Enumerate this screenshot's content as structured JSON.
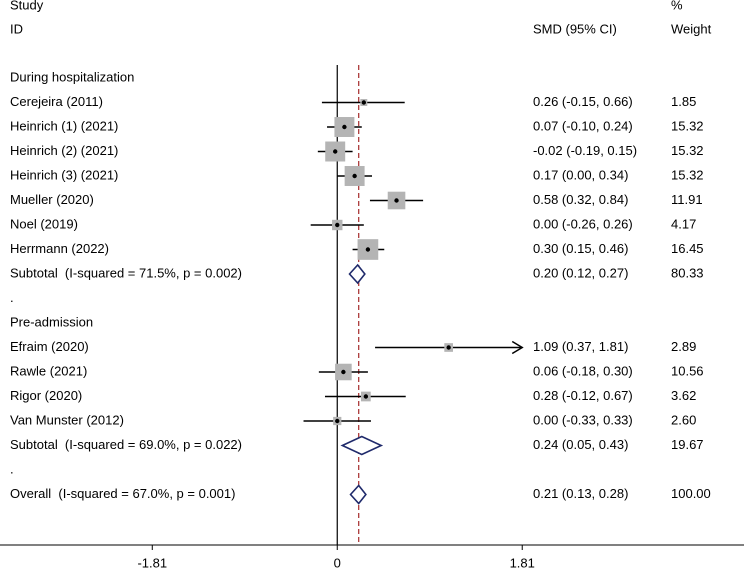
{
  "chart_data": {
    "type": "forest",
    "headers": {
      "study_top": "Study",
      "study": "ID",
      "effect": "SMD (95% CI)",
      "weight_top": "%",
      "weight": "Weight"
    },
    "xlim": [
      -3.3,
      3.98
    ],
    "xticks": [
      -1.81,
      0,
      1.81
    ],
    "square_color": "#b4b4b4",
    "diamond_color": "#1f2a6b",
    "overall_line_color": "#a52a2a",
    "rows": [
      {
        "kind": "group",
        "label": "During hospitalization"
      },
      {
        "kind": "study",
        "label": "Cerejeira (2011)",
        "smd": 0.26,
        "lo": -0.15,
        "hi": 0.66,
        "ci_label": "0.26 (-0.15, 0.66)",
        "weight": 1.85
      },
      {
        "kind": "study",
        "label": "Heinrich (1) (2021)",
        "smd": 0.07,
        "lo": -0.1,
        "hi": 0.24,
        "ci_label": "0.07 (-0.10, 0.24)",
        "weight": 15.32
      },
      {
        "kind": "study",
        "label": "Heinrich (2) (2021)",
        "smd": -0.02,
        "lo": -0.19,
        "hi": 0.15,
        "ci_label": "-0.02 (-0.19, 0.15)",
        "weight": 15.32
      },
      {
        "kind": "study",
        "label": "Heinrich (3) (2021)",
        "smd": 0.17,
        "lo": 0.0,
        "hi": 0.34,
        "ci_label": "0.17 (0.00, 0.34)",
        "weight": 15.32
      },
      {
        "kind": "study",
        "label": "Mueller (2020)",
        "smd": 0.58,
        "lo": 0.32,
        "hi": 0.84,
        "ci_label": "0.58 (0.32, 0.84)",
        "weight": 11.91
      },
      {
        "kind": "study",
        "label": "Noel (2019)",
        "smd": 0.0,
        "lo": -0.26,
        "hi": 0.26,
        "ci_label": "0.00 (-0.26, 0.26)",
        "weight": 4.17
      },
      {
        "kind": "study",
        "label": "Herrmann (2022)",
        "smd": 0.3,
        "lo": 0.15,
        "hi": 0.46,
        "ci_label": "0.30 (0.15, 0.46)",
        "weight": 16.45
      },
      {
        "kind": "subtotal",
        "label": "Subtotal  (I-squared = 71.5%, p = 0.002)",
        "smd": 0.2,
        "lo": 0.12,
        "hi": 0.27,
        "ci_label": "0.20 (0.12, 0.27)",
        "weight": 80.33
      },
      {
        "kind": "spacer",
        "label": "."
      },
      {
        "kind": "group",
        "label": "Pre-admission"
      },
      {
        "kind": "study",
        "label": "Efraim (2020)",
        "smd": 1.09,
        "lo": 0.37,
        "hi": 1.81,
        "ci_label": "1.09 (0.37, 1.81)",
        "weight": 2.89
      },
      {
        "kind": "study",
        "label": "Rawle (2021)",
        "smd": 0.06,
        "lo": -0.18,
        "hi": 0.3,
        "ci_label": "0.06 (-0.18, 0.30)",
        "weight": 10.56
      },
      {
        "kind": "study",
        "label": "Rigor (2020)",
        "smd": 0.28,
        "lo": -0.12,
        "hi": 0.67,
        "ci_label": "0.28 (-0.12, 0.67)",
        "weight": 3.62
      },
      {
        "kind": "study",
        "label": "Van Munster (2012)",
        "smd": 0.0,
        "lo": -0.33,
        "hi": 0.33,
        "ci_label": "0.00 (-0.33, 0.33)",
        "weight": 2.6,
        "weight_label": "2.60"
      },
      {
        "kind": "subtotal",
        "label": "Subtotal  (I-squared = 69.0%, p = 0.022)",
        "smd": 0.24,
        "lo": 0.05,
        "hi": 0.43,
        "ci_label": "0.24 (0.05, 0.43)",
        "weight": 19.67
      },
      {
        "kind": "spacer",
        "label": "."
      },
      {
        "kind": "overall",
        "label": "Overall  (I-squared = 67.0%, p = 0.001)",
        "smd": 0.21,
        "lo": 0.13,
        "hi": 0.28,
        "ci_label": "0.21 (0.13, 0.28)",
        "weight": 100,
        "weight_label": "100.00"
      }
    ]
  }
}
